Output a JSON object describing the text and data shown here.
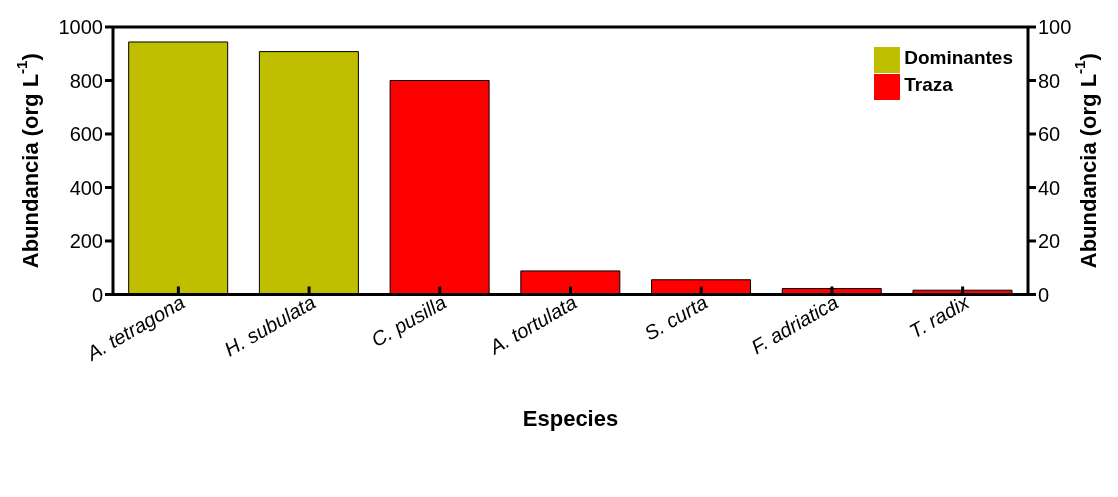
{
  "chart_data": {
    "type": "bar",
    "xlabel": "Especies",
    "ylabel": "Abundancia (org L$^{-1}$)",
    "y2label": "Abundancia (org L$^{-1}$)",
    "categories": [
      "A. tetragona",
      "H. subulata",
      "C. pusilla",
      "A. tortulata",
      "S. curta",
      "F. adriatica",
      "T. radix"
    ],
    "series": [
      {
        "name": "Dominantes",
        "color": "#bfbf00",
        "values": [
          944,
          908,
          null,
          null,
          null,
          null,
          null
        ]
      },
      {
        "name": "Traza",
        "color": "#ff0000",
        "axis": "y2",
        "values": [
          null,
          null,
          80,
          8.8,
          5.5,
          2.2,
          1.6
        ]
      }
    ],
    "ylim": [
      0,
      1000
    ],
    "yticks": [
      0,
      200,
      400,
      600,
      800,
      1000
    ],
    "y2lim": [
      0,
      100
    ],
    "y2ticks": [
      0,
      20,
      40,
      60,
      80,
      100
    ],
    "grid": false,
    "legend": "top right"
  }
}
